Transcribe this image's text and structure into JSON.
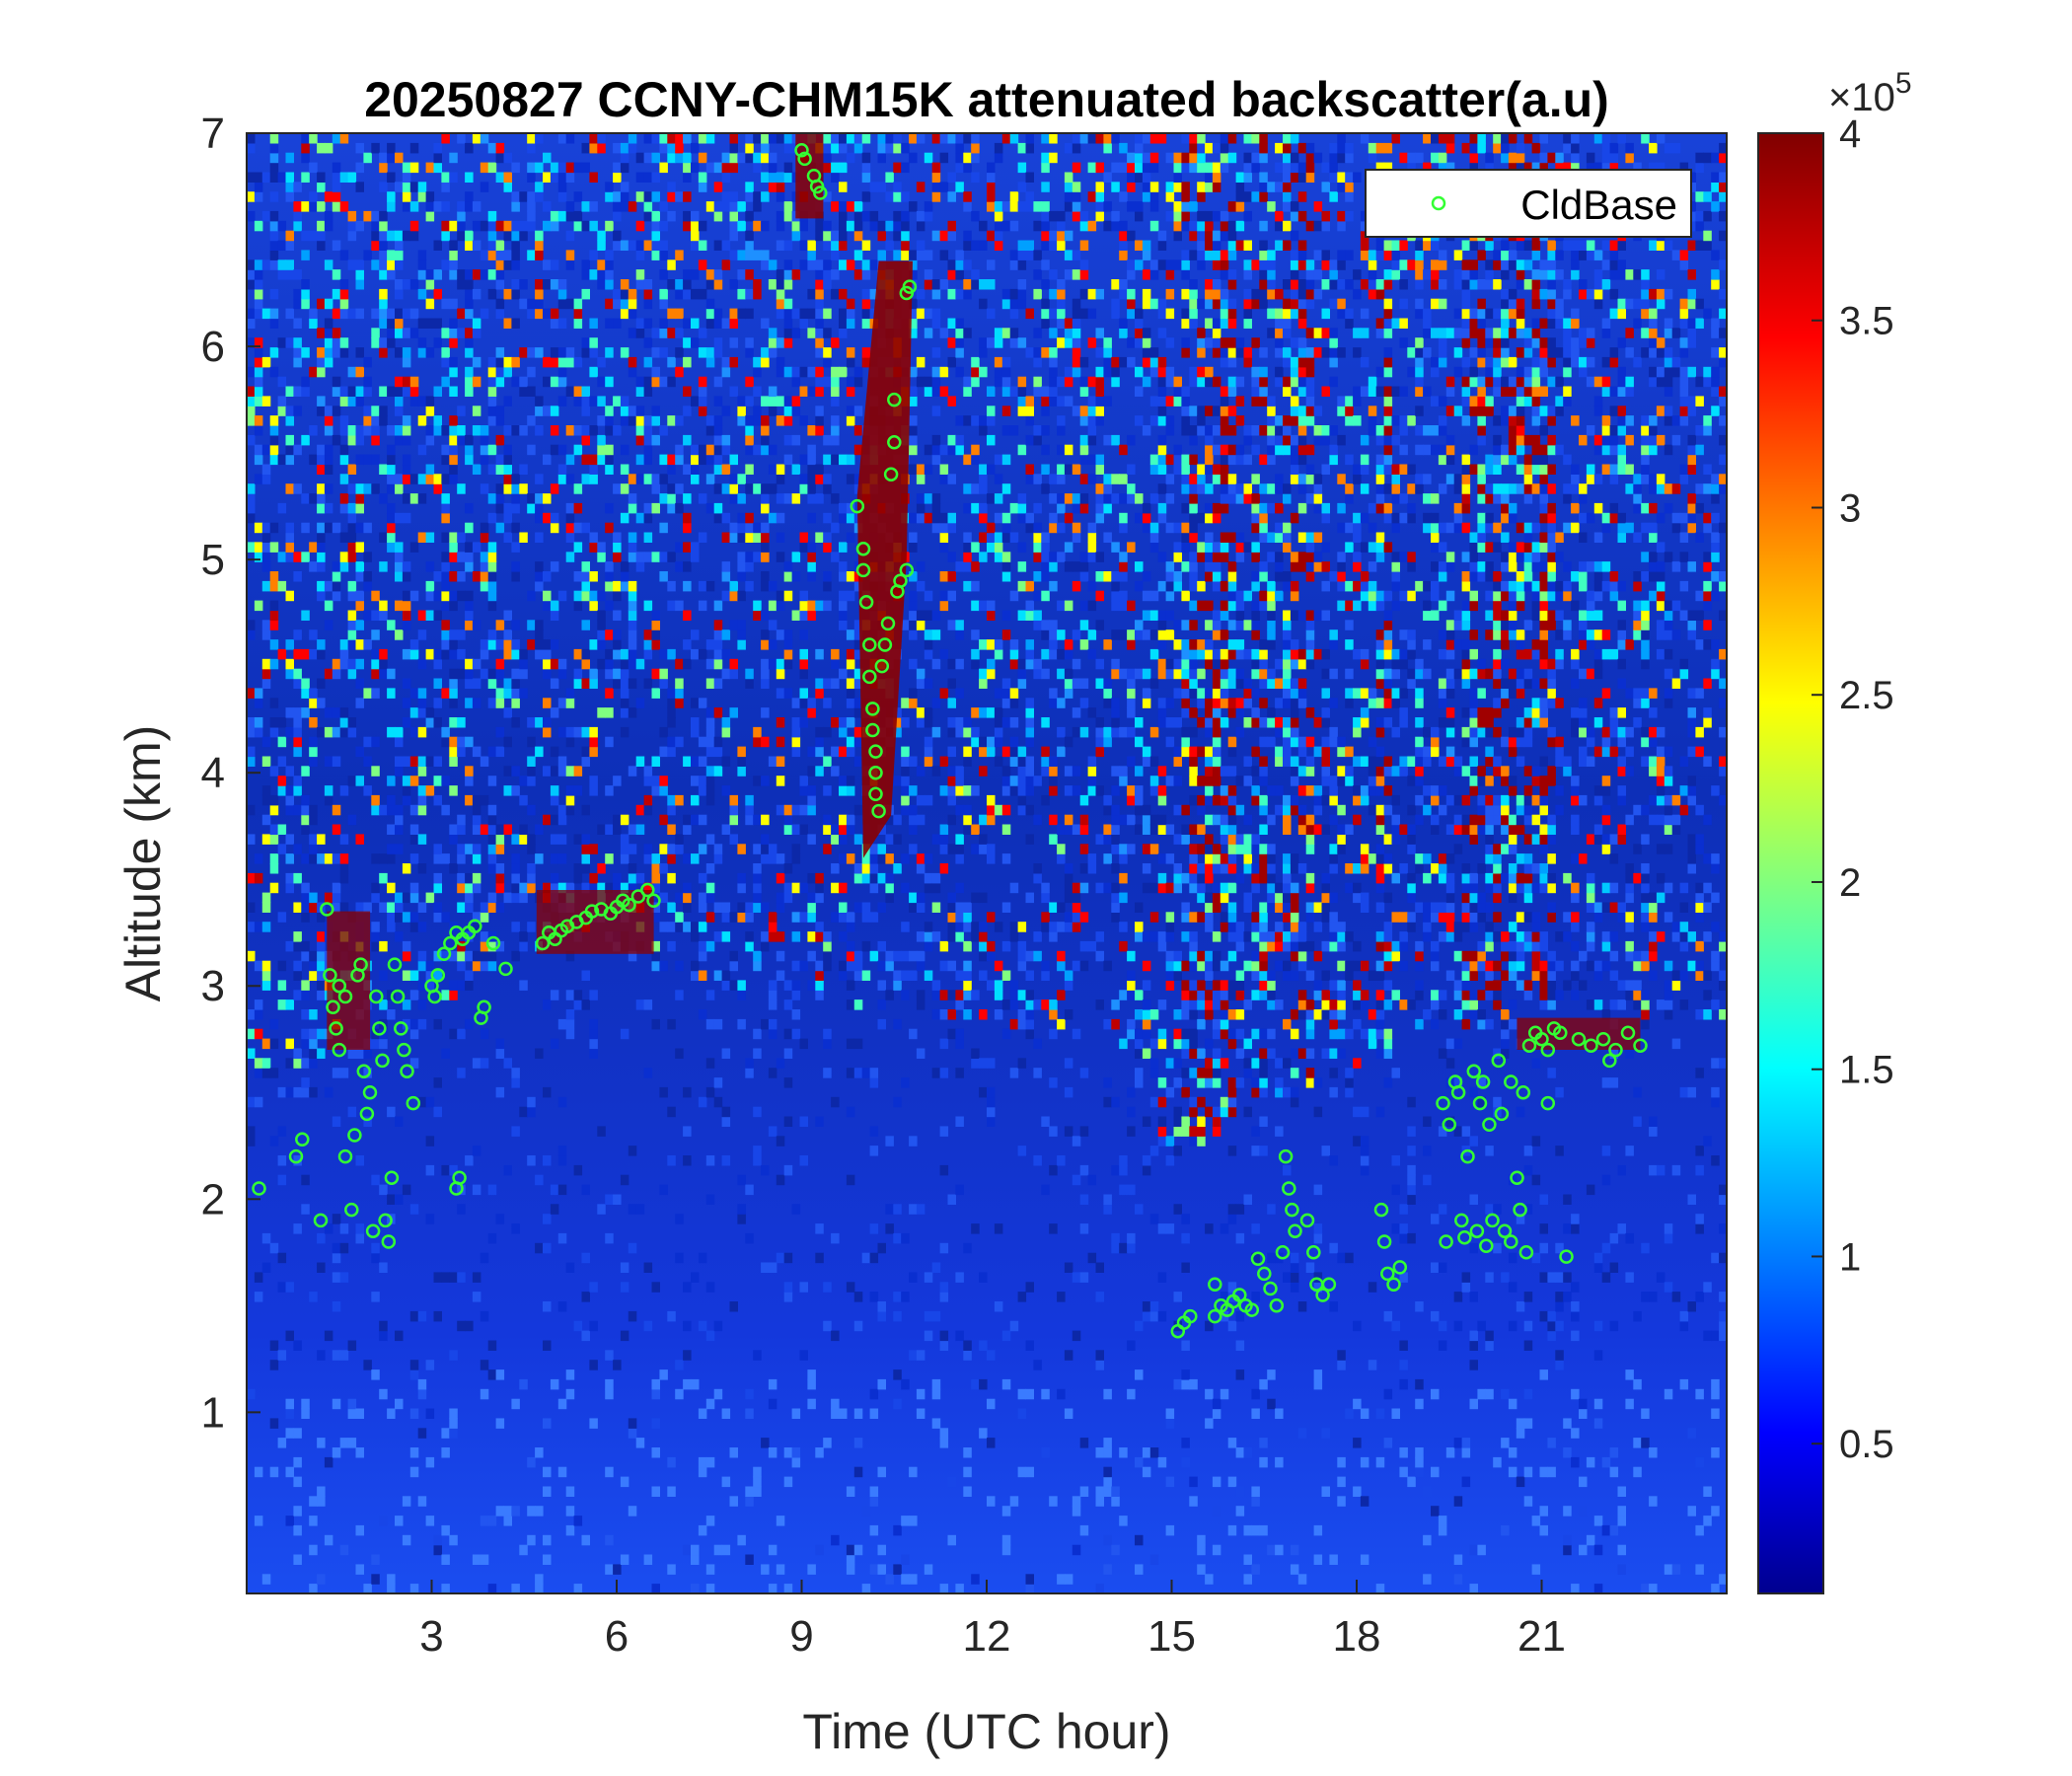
{
  "chart_data": {
    "type": "heatmap",
    "title": "20250827 CCNY-CHM15K attenuated backscatter(a.u)",
    "xlabel": "Time (UTC hour)",
    "ylabel": "Altitude (km)",
    "xlim": [
      0,
      24
    ],
    "ylim": [
      0.15,
      7
    ],
    "x_ticks": [
      3,
      6,
      9,
      12,
      15,
      18,
      21
    ],
    "y_ticks": [
      1,
      2,
      3,
      4,
      5,
      6,
      7
    ],
    "colorbar": {
      "colormap": "jet",
      "range": [
        0.1,
        4
      ],
      "ticks": [
        0.5,
        1,
        1.5,
        2,
        2.5,
        3,
        3.5,
        4
      ],
      "multiplier_base": "×10",
      "multiplier_exp": "5"
    },
    "legend": {
      "position": "top-right",
      "label": "CldBase",
      "marker": "circle",
      "color": "#33ff33"
    },
    "features": {
      "boundary_layer": [
        [
          0,
          2.4
        ],
        [
          1,
          2.5
        ],
        [
          2,
          2.7
        ],
        [
          3,
          2.9
        ],
        [
          5,
          3.2
        ],
        [
          6.5,
          3.1
        ],
        [
          8,
          3.0
        ],
        [
          10,
          2.9
        ],
        [
          12,
          2.8
        ],
        [
          14,
          2.8
        ],
        [
          15,
          2.2
        ],
        [
          17,
          2.5
        ],
        [
          19,
          2.7
        ],
        [
          21,
          2.9
        ],
        [
          24,
          2.8
        ]
      ],
      "cirrus_band": {
        "x": [
          9.9,
          10.8
        ],
        "y": [
          3.6,
          6.4
        ]
      },
      "noise_columns": [
        [
          15.2,
          16.0
        ],
        [
          16.3,
          16.6
        ],
        [
          16.8,
          17.3
        ],
        [
          18.3,
          18.6
        ],
        [
          19.7,
          21.2
        ]
      ]
    },
    "series": [
      {
        "name": "CldBase",
        "points": [
          [
            0.2,
            2.05
          ],
          [
            0.8,
            2.2
          ],
          [
            0.9,
            2.28
          ],
          [
            1.2,
            1.9
          ],
          [
            1.3,
            3.36
          ],
          [
            1.35,
            3.05
          ],
          [
            1.4,
            2.9
          ],
          [
            1.45,
            2.8
          ],
          [
            1.5,
            3.0
          ],
          [
            1.5,
            2.7
          ],
          [
            1.6,
            2.95
          ],
          [
            1.6,
            2.2
          ],
          [
            1.7,
            1.95
          ],
          [
            1.75,
            2.3
          ],
          [
            1.8,
            3.05
          ],
          [
            1.85,
            3.1
          ],
          [
            1.9,
            2.6
          ],
          [
            1.95,
            2.4
          ],
          [
            2.0,
            2.5
          ],
          [
            2.05,
            1.85
          ],
          [
            2.1,
            2.95
          ],
          [
            2.15,
            2.8
          ],
          [
            2.2,
            2.65
          ],
          [
            2.25,
            1.9
          ],
          [
            2.3,
            1.8
          ],
          [
            2.35,
            2.1
          ],
          [
            2.4,
            3.1
          ],
          [
            2.45,
            2.95
          ],
          [
            2.5,
            2.8
          ],
          [
            2.55,
            2.7
          ],
          [
            2.6,
            2.6
          ],
          [
            2.7,
            2.45
          ],
          [
            3.0,
            3.0
          ],
          [
            3.05,
            2.95
          ],
          [
            3.1,
            3.05
          ],
          [
            3.2,
            3.15
          ],
          [
            3.3,
            3.2
          ],
          [
            3.4,
            3.25
          ],
          [
            3.4,
            2.05
          ],
          [
            3.45,
            2.1
          ],
          [
            3.5,
            3.22
          ],
          [
            3.6,
            3.25
          ],
          [
            3.7,
            3.28
          ],
          [
            3.8,
            2.85
          ],
          [
            3.85,
            2.9
          ],
          [
            4.0,
            3.2
          ],
          [
            4.2,
            3.08
          ],
          [
            4.8,
            3.2
          ],
          [
            4.9,
            3.25
          ],
          [
            5.0,
            3.22
          ],
          [
            5.1,
            3.26
          ],
          [
            5.2,
            3.28
          ],
          [
            5.35,
            3.3
          ],
          [
            5.5,
            3.32
          ],
          [
            5.6,
            3.35
          ],
          [
            5.75,
            3.36
          ],
          [
            5.9,
            3.34
          ],
          [
            6.0,
            3.37
          ],
          [
            6.1,
            3.4
          ],
          [
            6.2,
            3.38
          ],
          [
            6.35,
            3.42
          ],
          [
            6.5,
            3.45
          ],
          [
            6.6,
            3.4
          ],
          [
            9.0,
            6.92
          ],
          [
            9.05,
            6.88
          ],
          [
            9.2,
            6.8
          ],
          [
            9.25,
            6.75
          ],
          [
            9.3,
            6.72
          ],
          [
            9.9,
            5.25
          ],
          [
            10.0,
            5.05
          ],
          [
            10.0,
            4.95
          ],
          [
            10.05,
            4.8
          ],
          [
            10.1,
            4.6
          ],
          [
            10.1,
            4.45
          ],
          [
            10.15,
            4.3
          ],
          [
            10.15,
            4.2
          ],
          [
            10.2,
            4.1
          ],
          [
            10.2,
            4.0
          ],
          [
            10.2,
            3.9
          ],
          [
            10.25,
            3.82
          ],
          [
            10.3,
            4.5
          ],
          [
            10.35,
            4.6
          ],
          [
            10.4,
            4.7
          ],
          [
            10.45,
            5.4
          ],
          [
            10.5,
            5.55
          ],
          [
            10.5,
            5.75
          ],
          [
            10.55,
            4.85
          ],
          [
            10.6,
            4.9
          ],
          [
            10.7,
            4.95
          ],
          [
            10.7,
            6.25
          ],
          [
            10.75,
            6.28
          ],
          [
            15.1,
            1.38
          ],
          [
            15.2,
            1.42
          ],
          [
            15.3,
            1.45
          ],
          [
            15.7,
            1.45
          ],
          [
            15.7,
            1.6
          ],
          [
            15.8,
            1.5
          ],
          [
            15.9,
            1.48
          ],
          [
            16.0,
            1.52
          ],
          [
            16.1,
            1.55
          ],
          [
            16.2,
            1.5
          ],
          [
            16.3,
            1.48
          ],
          [
            16.4,
            1.72
          ],
          [
            16.5,
            1.65
          ],
          [
            16.6,
            1.58
          ],
          [
            16.7,
            1.5
          ],
          [
            16.8,
            1.75
          ],
          [
            16.85,
            2.2
          ],
          [
            16.9,
            2.05
          ],
          [
            16.95,
            1.95
          ],
          [
            17.0,
            1.85
          ],
          [
            17.2,
            1.9
          ],
          [
            17.3,
            1.75
          ],
          [
            17.35,
            1.6
          ],
          [
            17.45,
            1.55
          ],
          [
            17.55,
            1.6
          ],
          [
            18.4,
            1.95
          ],
          [
            18.45,
            1.8
          ],
          [
            18.5,
            1.65
          ],
          [
            18.6,
            1.6
          ],
          [
            18.7,
            1.68
          ],
          [
            19.4,
            2.45
          ],
          [
            19.45,
            1.8
          ],
          [
            19.5,
            2.35
          ],
          [
            19.6,
            2.55
          ],
          [
            19.65,
            2.5
          ],
          [
            19.7,
            1.9
          ],
          [
            19.75,
            1.82
          ],
          [
            19.8,
            2.2
          ],
          [
            19.9,
            2.6
          ],
          [
            19.95,
            1.85
          ],
          [
            20.0,
            2.45
          ],
          [
            20.05,
            2.55
          ],
          [
            20.1,
            1.78
          ],
          [
            20.15,
            2.35
          ],
          [
            20.2,
            1.9
          ],
          [
            20.3,
            2.65
          ],
          [
            20.35,
            2.4
          ],
          [
            20.4,
            1.85
          ],
          [
            20.5,
            2.55
          ],
          [
            20.5,
            1.8
          ],
          [
            20.6,
            2.1
          ],
          [
            20.65,
            1.95
          ],
          [
            20.7,
            2.5
          ],
          [
            20.75,
            1.75
          ],
          [
            20.8,
            2.72
          ],
          [
            20.9,
            2.78
          ],
          [
            21.0,
            2.75
          ],
          [
            21.1,
            2.7
          ],
          [
            21.1,
            2.45
          ],
          [
            21.2,
            2.8
          ],
          [
            21.3,
            2.78
          ],
          [
            21.4,
            1.73
          ],
          [
            21.6,
            2.75
          ],
          [
            21.8,
            2.72
          ],
          [
            22.0,
            2.75
          ],
          [
            22.1,
            2.65
          ],
          [
            22.2,
            2.7
          ],
          [
            22.4,
            2.78
          ],
          [
            22.6,
            2.72
          ]
        ]
      }
    ]
  }
}
